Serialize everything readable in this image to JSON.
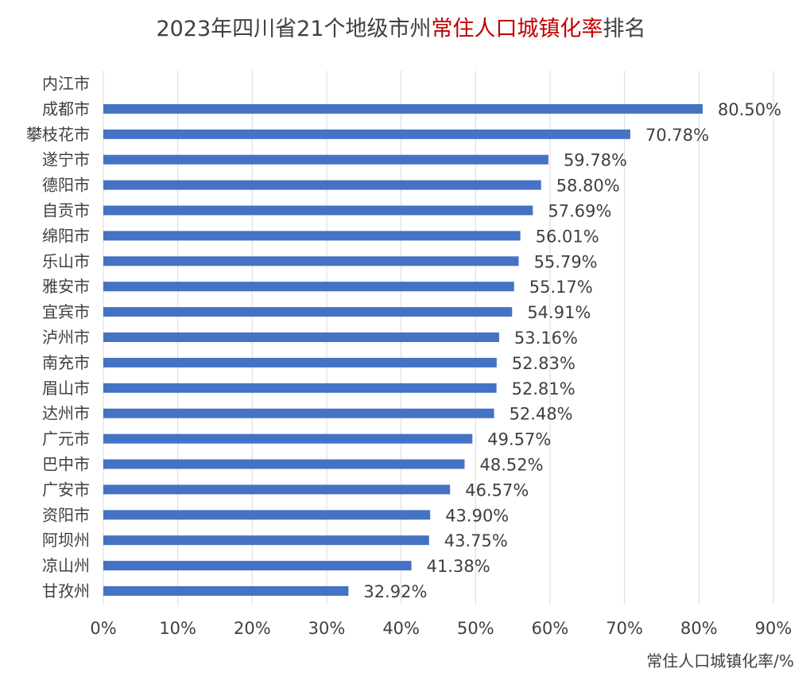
{
  "chart_data": {
    "type": "bar",
    "orientation": "horizontal",
    "title_parts": {
      "prefix": "2023年四川省21个地级市州",
      "highlight": "常住人口城镇化率",
      "suffix": "排名"
    },
    "highlight_color": "#c00000",
    "bar_color": "#4472c4",
    "categories": [
      "内江市",
      "成都市",
      "攀枝花市",
      "遂宁市",
      "德阳市",
      "自贡市",
      "绵阳市",
      "乐山市",
      "雅安市",
      "宜宾市",
      "泸州市",
      "南充市",
      "眉山市",
      "达州市",
      "广元市",
      "巴中市",
      "广安市",
      "资阳市",
      "阿坝州",
      "凉山州",
      "甘孜州"
    ],
    "values": [
      null,
      80.5,
      70.78,
      59.78,
      58.8,
      57.69,
      56.01,
      55.79,
      55.17,
      54.91,
      53.16,
      52.83,
      52.81,
      52.48,
      49.57,
      48.52,
      46.57,
      43.9,
      43.75,
      41.38,
      32.92
    ],
    "data_labels": [
      "",
      "80.50%",
      "70.78%",
      "59.78%",
      "58.80%",
      "57.69%",
      "56.01%",
      "55.79%",
      "55.17%",
      "54.91%",
      "53.16%",
      "52.83%",
      "52.81%",
      "52.48%",
      "49.57%",
      "48.52%",
      "46.57%",
      "43.90%",
      "43.75%",
      "41.38%",
      "32.92%"
    ],
    "x_ticks": [
      "0%",
      "10%",
      "20%",
      "30%",
      "40%",
      "50%",
      "60%",
      "70%",
      "80%",
      "90%"
    ],
    "xlim": [
      0,
      90
    ],
    "xlabel": "常住人口城镇化率/%",
    "ylabel": "",
    "grid": true
  }
}
